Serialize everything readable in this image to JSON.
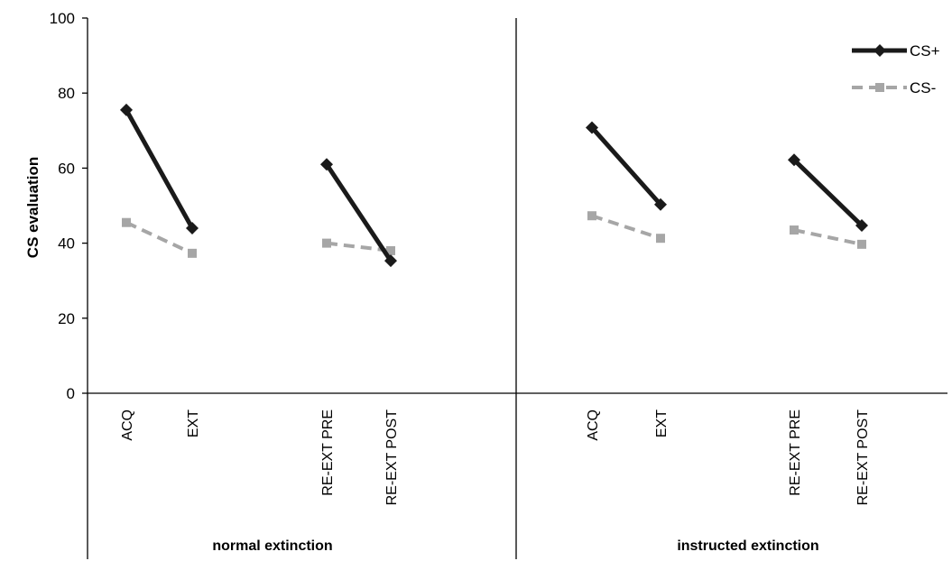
{
  "chart_data": {
    "type": "line",
    "ylabel": "CS evaluation",
    "ylim": [
      0,
      100
    ],
    "yticks": [
      0,
      20,
      40,
      60,
      80,
      100
    ],
    "grid": false,
    "legend_position": "top-right",
    "groups": [
      {
        "label": "normal extinction",
        "categories": [
          "ACQ",
          "EXT",
          "RE-EXT PRE",
          "RE-EXT POST"
        ],
        "series": [
          {
            "name": "CS+",
            "color": "#1a1a1a",
            "values": [
              75.5,
              44,
              61,
              35.3
            ]
          },
          {
            "name": "CS-",
            "color": "#a6a6a6",
            "values": [
              45.5,
              37.3,
              40,
              38
            ]
          }
        ]
      },
      {
        "label": "instructed extinction",
        "categories": [
          "ACQ",
          "EXT",
          "RE-EXT PRE",
          "RE-EXT POST"
        ],
        "series": [
          {
            "name": "CS+",
            "color": "#1a1a1a",
            "values": [
              70.8,
              50.3,
              62.2,
              44.7
            ]
          },
          {
            "name": "CS-",
            "color": "#a6a6a6",
            "values": [
              47.3,
              41.3,
              43.5,
              39.7
            ]
          }
        ]
      }
    ],
    "legend": [
      {
        "name": "CS+",
        "color": "#1a1a1a",
        "style": "solid",
        "marker": "diamond"
      },
      {
        "name": "CS-",
        "color": "#a6a6a6",
        "style": "dashed",
        "marker": "square"
      }
    ]
  }
}
